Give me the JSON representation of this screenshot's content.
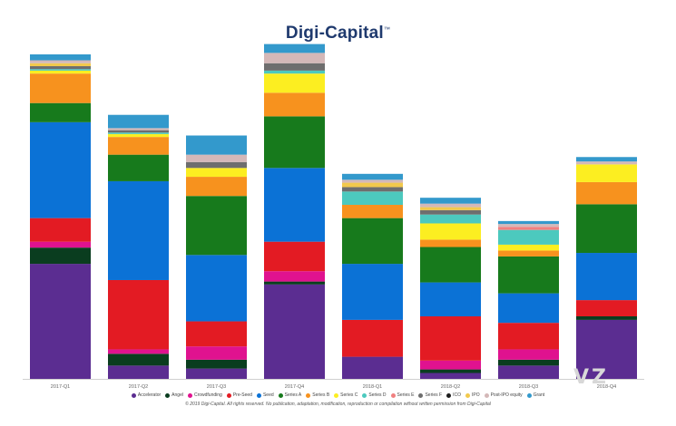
{
  "brand": {
    "logo_text": "Digi-Capital",
    "trademark": "™"
  },
  "copyright": "© 2019 Digi-Capital. All rights reserved. No publication, adaptation, modification, reproduction or compilation without written permission from Digi-Capital",
  "watermark": "VZ",
  "chart_data": {
    "type": "bar",
    "stacked": true,
    "categories": [
      "2017-Q1",
      "2017-Q2",
      "2017-Q3",
      "2017-Q4",
      "2018-Q1",
      "2018-Q2",
      "2018-Q3",
      "2018-Q4"
    ],
    "ylim": [
      0,
      1100
    ],
    "grid": false,
    "legend_position": "bottom",
    "series": [
      {
        "name": "Accelerator",
        "color": "#5b2d91",
        "values": [
          390,
          45,
          35,
          320,
          75,
          20,
          45,
          200
        ]
      },
      {
        "name": "Angel",
        "color": "#0a3d1f",
        "values": [
          55,
          40,
          30,
          10,
          0,
          12,
          20,
          12
        ]
      },
      {
        "name": "Crowdfunding",
        "color": "#e0128f",
        "values": [
          20,
          15,
          45,
          35,
          0,
          30,
          35,
          0
        ]
      },
      {
        "name": "Pre-Seed",
        "color": "#e31b23",
        "values": [
          80,
          235,
          85,
          100,
          125,
          150,
          90,
          55
        ]
      },
      {
        "name": "Seed",
        "color": "#0b72d6",
        "values": [
          325,
          335,
          225,
          250,
          190,
          115,
          100,
          160
        ]
      },
      {
        "name": "Series A",
        "color": "#177a1c",
        "values": [
          65,
          90,
          200,
          175,
          155,
          120,
          125,
          165
        ]
      },
      {
        "name": "Series B",
        "color": "#f7921e",
        "values": [
          100,
          60,
          65,
          80,
          45,
          25,
          20,
          75
        ]
      },
      {
        "name": "Series C",
        "color": "#fcee21",
        "values": [
          10,
          10,
          30,
          65,
          0,
          55,
          20,
          60
        ]
      },
      {
        "name": "Series D",
        "color": "#4cc9be",
        "values": [
          5,
          5,
          0,
          10,
          45,
          30,
          50,
          0
        ]
      },
      {
        "name": "Series E",
        "color": "#f08080",
        "values": [
          0,
          0,
          0,
          0,
          0,
          0,
          10,
          0
        ]
      },
      {
        "name": "Series F",
        "color": "#6e6e6e",
        "values": [
          10,
          8,
          20,
          25,
          15,
          15,
          0,
          0
        ]
      },
      {
        "name": "ICO",
        "color": "#1c1c1c",
        "values": [
          0,
          0,
          0,
          0,
          0,
          0,
          0,
          0
        ]
      },
      {
        "name": "IPO",
        "color": "#f2c94c",
        "values": [
          10,
          0,
          0,
          0,
          15,
          10,
          0,
          0
        ]
      },
      {
        "name": "Post-IPO equity",
        "color": "#d4b8b8",
        "values": [
          10,
          7,
          25,
          35,
          10,
          12,
          10,
          10
        ]
      },
      {
        "name": "Grant",
        "color": "#3399cc",
        "values": [
          20,
          45,
          65,
          30,
          20,
          20,
          10,
          15
        ]
      }
    ]
  }
}
